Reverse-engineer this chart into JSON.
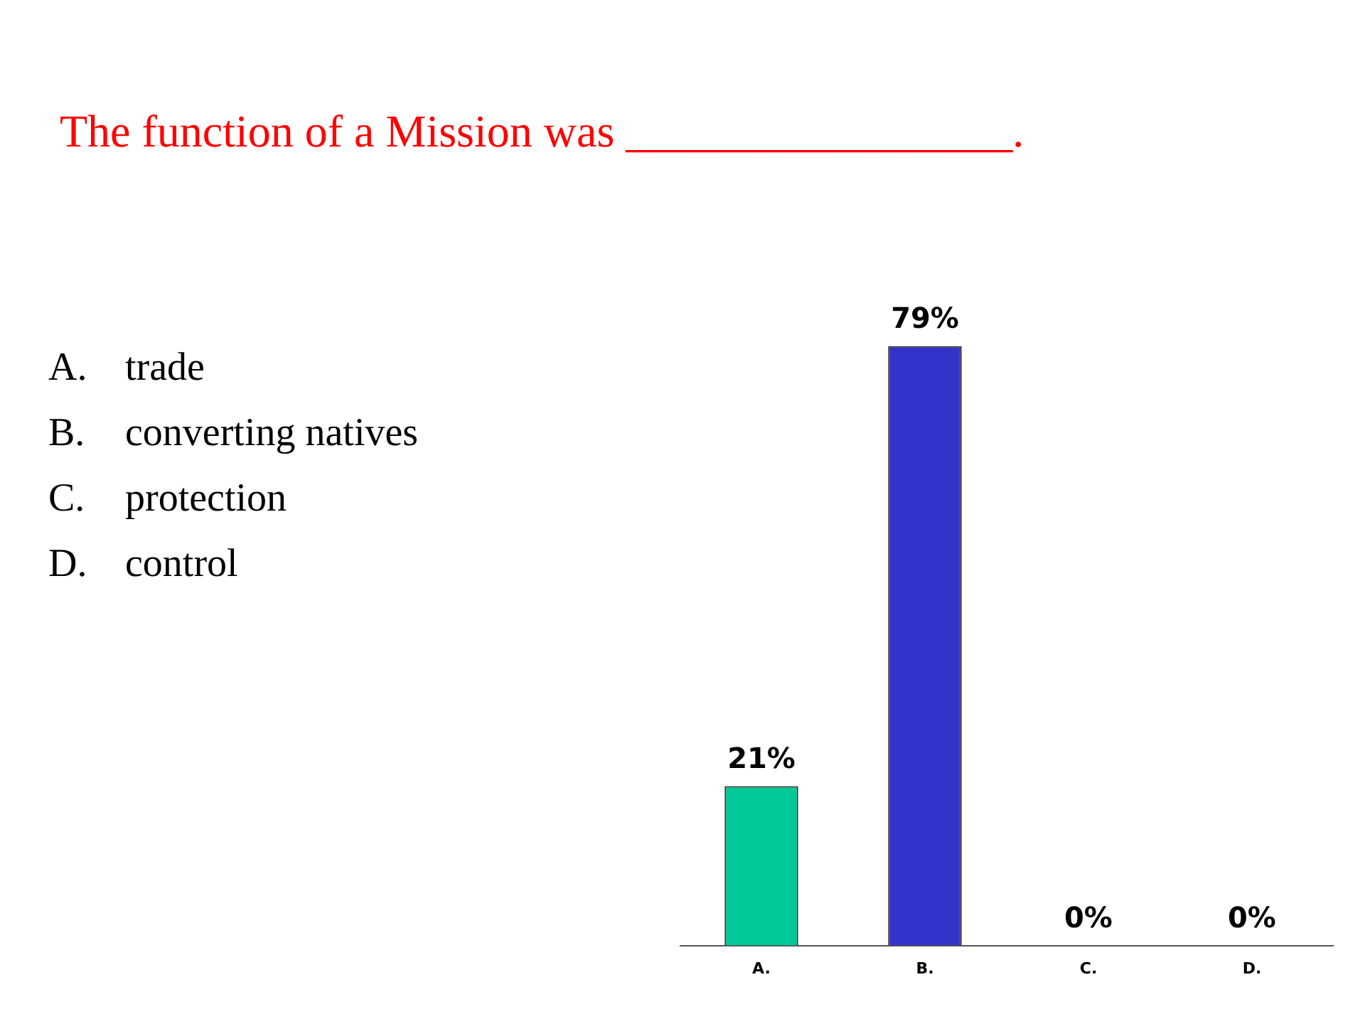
{
  "chart_data": {
    "type": "bar",
    "title": "The function of a Mission was _________________.",
    "categories": [
      "A.",
      "B.",
      "C.",
      "D."
    ],
    "values": [
      21,
      79,
      0,
      0
    ],
    "colors": [
      "#00c896",
      "#3333cc",
      "#a0a0e0",
      "#f0f0f0"
    ],
    "value_labels": [
      "21%",
      "79%",
      "0%",
      "0%"
    ],
    "annotations": [
      "trade",
      "converting natives",
      "protection",
      "control"
    ],
    "grid": false,
    "legend": false
  }
}
